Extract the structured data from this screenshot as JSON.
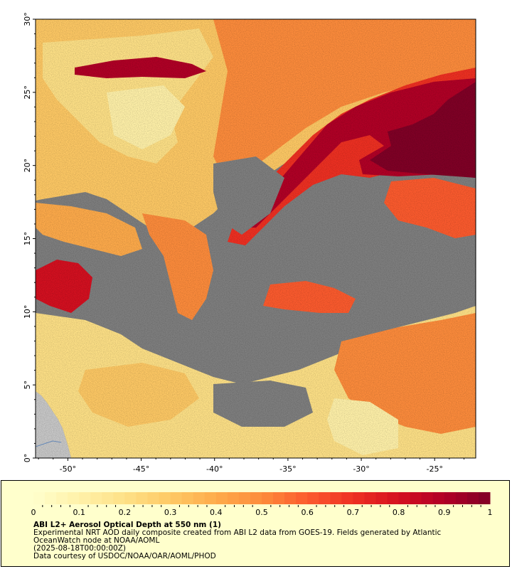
{
  "map": {
    "lat_ticks": [
      "0°",
      "5°",
      "10°",
      "15°",
      "20°",
      "25°",
      "30°"
    ],
    "lon_ticks": [
      "-50°",
      "-45°",
      "-40°",
      "-35°",
      "-30°",
      "-25°"
    ],
    "lat_range": [
      0,
      30
    ],
    "lon_range": [
      -52.2,
      -22.2
    ],
    "no_data_color": "#7f7f7f",
    "land_color": "#c8c8c8"
  },
  "legend": {
    "ticks": [
      "0",
      "0.1",
      "0.2",
      "0.3",
      "0.4",
      "0.5",
      "0.6",
      "0.7",
      "0.8",
      "0.9",
      "1"
    ],
    "colors": [
      "#ffffcc",
      "#fff1a9",
      "#fee187",
      "#fec965",
      "#feab4b",
      "#fd8c3c",
      "#fc5b2e",
      "#ee3022",
      "#d41020",
      "#b10026",
      "#800026"
    ],
    "title": "ABI L2+ Aerosol Optical Depth at 550 nm (1)",
    "description": "Experimental NRT AOD daily composite created from ABI L2 data from GOES-19. Fields generated by Atlantic OceanWatch node at NOAA/AOML",
    "description_line1": "Experimental NRT AOD daily composite created from ABI L2 data from GOES-19. Fields generated by Atlantic",
    "description_line2": "OceanWatch node at NOAA/AOML",
    "timestamp": "(2025-08-18T00:00:00Z)",
    "credit": "Data courtesy of USDOC/NOAA/OAR/AOML/PHOD"
  }
}
